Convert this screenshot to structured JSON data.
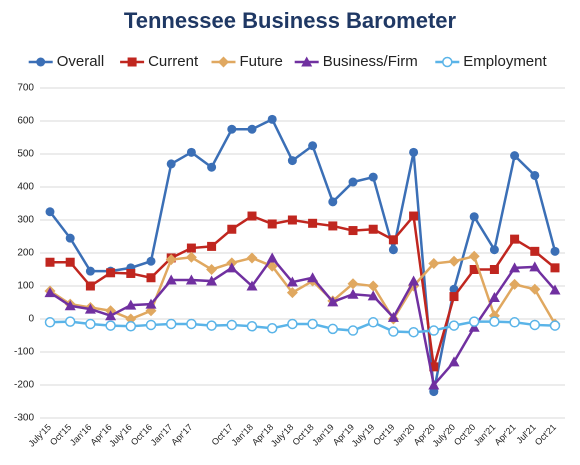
{
  "chart_data": {
    "type": "line",
    "title": "Tennessee Business Barometer",
    "categories": [
      "July'15",
      "Oct'15",
      "Jan'16",
      "Apr'16",
      "July'16",
      "Oct'16",
      "Jan'17",
      "Apr'17",
      null,
      "Oct'17",
      "Jan'18",
      "Apr'18",
      "July'18",
      "Oct'18",
      "Jan'19",
      "Apr'19",
      "July'19",
      "Oct'19",
      "Jan'20",
      "Apr'20",
      "July'20",
      "Oct'20",
      "Jan'21",
      "Apr'21",
      "Jul'21",
      "Oct'21"
    ],
    "series": [
      {
        "name": "Overall",
        "color": "#3b6fb6",
        "marker": "circle",
        "values": [
          325,
          245,
          145,
          145,
          155,
          175,
          470,
          505,
          460,
          575,
          575,
          605,
          480,
          525,
          355,
          415,
          430,
          210,
          505,
          -220,
          90,
          310,
          210,
          495,
          435,
          205
        ]
      },
      {
        "name": "Current",
        "color": "#c0261f",
        "marker": "square",
        "values": [
          172,
          172,
          100,
          140,
          138,
          125,
          185,
          215,
          220,
          272,
          312,
          288,
          300,
          290,
          282,
          268,
          272,
          240,
          312,
          -145,
          68,
          150,
          150,
          242,
          205,
          155
        ]
      },
      {
        "name": "Future",
        "color": "#e0a860",
        "marker": "diamond",
        "values": [
          85,
          45,
          35,
          25,
          0,
          25,
          180,
          187,
          150,
          170,
          185,
          160,
          80,
          115,
          55,
          107,
          100,
          0,
          100,
          168,
          175,
          190,
          10,
          105,
          90,
          -15
        ]
      },
      {
        "name": "Business/Firm",
        "color": "#7030a0",
        "marker": "triangle",
        "values": [
          80,
          40,
          30,
          10,
          42,
          45,
          118,
          118,
          115,
          155,
          100,
          185,
          112,
          125,
          52,
          75,
          70,
          5,
          115,
          -200,
          -130,
          -25,
          65,
          155,
          158,
          88
        ]
      },
      {
        "name": "Employment",
        "color": "#5ab4e8",
        "marker": "hollow-circle",
        "values": [
          -10,
          -8,
          -15,
          -20,
          -22,
          -18,
          -15,
          -15,
          -20,
          -18,
          -22,
          -28,
          -15,
          -15,
          -30,
          -35,
          -10,
          -38,
          -40,
          -35,
          -20,
          -8,
          -8,
          -10,
          -18,
          -20
        ]
      }
    ],
    "ylim": [
      -300,
      700
    ],
    "yticks": [
      -300,
      -200,
      -100,
      0,
      100,
      200,
      300,
      400,
      500,
      600,
      700
    ],
    "grid": true,
    "legend": "top"
  }
}
